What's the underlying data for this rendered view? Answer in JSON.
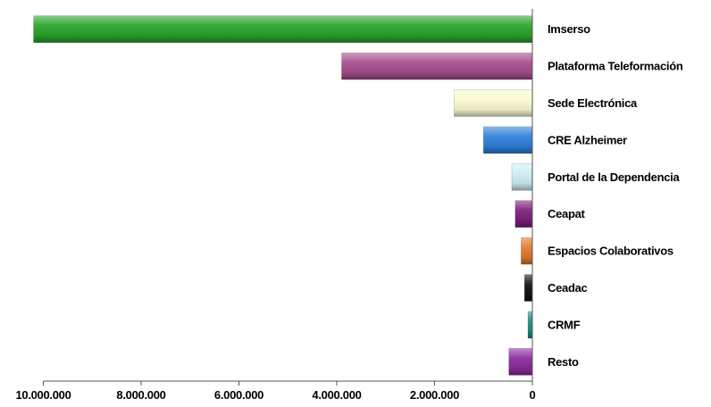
{
  "chart_data": {
    "type": "bar",
    "orientation": "horizontal",
    "x_direction": "reversed",
    "title": "",
    "xlabel": "",
    "ylabel": "",
    "xlim": [
      0,
      10000000
    ],
    "grid": false,
    "legend": "none",
    "categories": [
      "Imserso",
      "Plataforma Teleformación",
      "Sede Electrónica",
      "CRE Alzheimer",
      "Portal de la Dependencia",
      "Ceapat",
      "Espacios Colaborativos",
      "Ceadac",
      "CRMF",
      "Resto"
    ],
    "values": [
      10200000,
      3900000,
      1600000,
      1000000,
      420000,
      350000,
      230000,
      160000,
      90000,
      480000
    ],
    "colors": [
      "#29a329",
      "#a64d8c",
      "#fafad2",
      "#2e7fd9",
      "#cdeef5",
      "#7a1f7a",
      "#e07a30",
      "#111111",
      "#1f8a80",
      "#8c2a9e"
    ],
    "ticks": [
      10000000,
      8000000,
      6000000,
      4000000,
      2000000,
      0
    ],
    "tick_labels": [
      "10.000.000",
      "8.000.000",
      "6.000.000",
      "4.000.000",
      "2.000.000",
      "0"
    ]
  }
}
